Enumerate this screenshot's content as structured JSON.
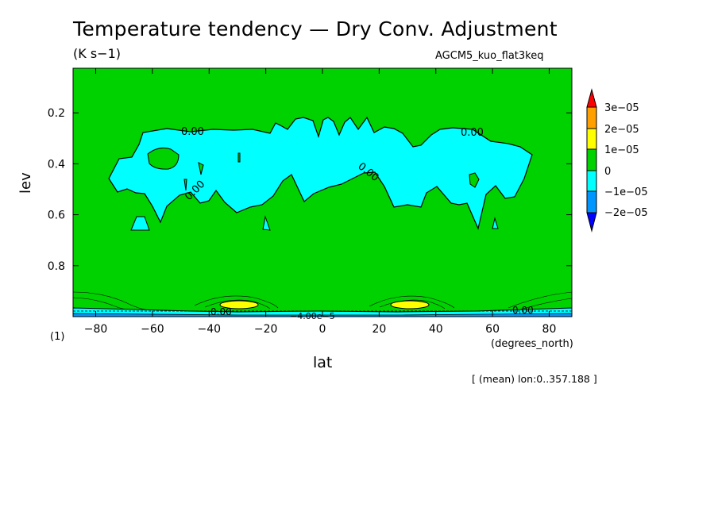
{
  "figure": {
    "title": "Temperature tendency — Dry Conv. Adjustment",
    "units": "(K s−1)",
    "run_name": "AGCM5_kuo_flat3keq",
    "footnote": "[ (mean) lon:0..357.188 ]"
  },
  "chart_data": {
    "type": "heatmap",
    "title": "Temperature tendency — Dry Conv. Adjustment",
    "subtitle": "(K s−1)",
    "xlabel": "lat",
    "xunit": "(degrees_north)",
    "ylabel": "lev",
    "yunit": "(1)",
    "xlim": [
      -88,
      88
    ],
    "ylim": [
      1.0,
      0.025
    ],
    "x_ticks": [
      -80,
      -60,
      -40,
      -20,
      0,
      20,
      40,
      60,
      80
    ],
    "x_tick_labels": [
      "−80",
      "−60",
      "−40",
      "−20",
      "0",
      "20",
      "40",
      "60",
      "80"
    ],
    "y_ticks": [
      0.2,
      0.4,
      0.6,
      0.8
    ],
    "y_tick_labels": [
      "0.2",
      "0.4",
      "0.6",
      "0.8"
    ],
    "contour_labels": [
      "0.00",
      "0.00",
      "0.00",
      "0.00",
      "0.00",
      "0.00",
      "−4.00e−5"
    ],
    "colorbar": {
      "levels": [
        3e-05,
        2e-05,
        1e-05,
        0,
        -1e-05,
        -2e-05
      ],
      "labels": [
        "3e−05",
        "2e−05",
        "1e−05",
        "0",
        "−1e−05",
        "−2e−05"
      ],
      "colors": [
        "#ff0000",
        "#ff9f00",
        "#ffff00",
        "#00d200",
        "#00ffff",
        "#0096ff",
        "#0000ff"
      ]
    },
    "regions": [
      {
        "value_range": "0 to 1e-05",
        "color": "#00d200",
        "extent": "background, whole domain"
      },
      {
        "value_range": "-1e-05 to 0",
        "color": "#00ffff",
        "lat_range": [
          -75,
          75
        ],
        "lev_range": [
          0.22,
          0.6
        ],
        "extent": "upper-tropospheric band"
      },
      {
        "value_range": "1e-05 to 2e-05",
        "color": "#ffff00",
        "lat": -32,
        "lev": 0.96
      },
      {
        "value_range": "1e-05 to 2e-05",
        "color": "#ffff00",
        "lat": 30,
        "lev": 0.96
      },
      {
        "value_range": "< -1e-05",
        "color": "#00ffff",
        "extent": "thin layer near lev 0.98-1.0"
      }
    ]
  }
}
